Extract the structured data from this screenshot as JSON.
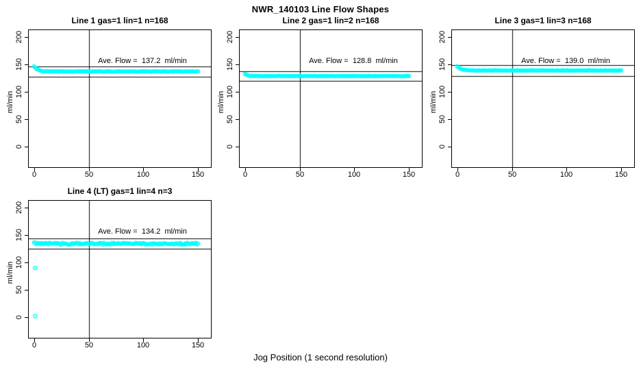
{
  "figure": {
    "title": "NWR_140103  Line Flow Shapes",
    "xlabel": "Jog Position (1 second resolution)",
    "ylabel": "ml/min",
    "background_color": "#ffffff",
    "point_color": "#00ffff",
    "line_color": "#000000"
  },
  "chart_data": [
    {
      "type": "scatter",
      "title": "Line 1 gas=1 lin=1 n=168",
      "annotation": "Ave. Flow =  137.2  ml/min",
      "ave_flow": 137.2,
      "xlim": [
        0,
        150
      ],
      "ylim": [
        0,
        200
      ],
      "x_ticks": [
        0,
        50,
        100,
        150
      ],
      "y_ticks": [
        0,
        50,
        100,
        150,
        200
      ],
      "vline_x": 50,
      "ref_lines": [
        146.8,
        127.6
      ],
      "series": {
        "start_value": 146.5,
        "settle_value": 137.2,
        "decay_tau": 3.2,
        "noise": 0.5,
        "x_start": 0,
        "x_end": 150
      },
      "outliers": []
    },
    {
      "type": "scatter",
      "title": "Line 2 gas=1 lin=2 n=168",
      "annotation": "Ave. Flow =  128.8  ml/min",
      "ave_flow": 128.8,
      "xlim": [
        0,
        150
      ],
      "ylim": [
        0,
        200
      ],
      "x_ticks": [
        0,
        50,
        100,
        150
      ],
      "y_ticks": [
        0,
        50,
        100,
        150,
        200
      ],
      "vline_x": 50,
      "ref_lines": [
        137.8,
        119.8
      ],
      "series": {
        "start_value": 133.0,
        "settle_value": 128.8,
        "decay_tau": 2.5,
        "noise": 0.5,
        "x_start": 0,
        "x_end": 150
      },
      "outliers": []
    },
    {
      "type": "scatter",
      "title": "Line 3 gas=1 lin=3 n=168",
      "annotation": "Ave. Flow =  139.0  ml/min",
      "ave_flow": 139.0,
      "xlim": [
        0,
        150
      ],
      "ylim": [
        0,
        200
      ],
      "x_ticks": [
        0,
        50,
        100,
        150
      ],
      "y_ticks": [
        0,
        50,
        100,
        150,
        200
      ],
      "vline_x": 50,
      "ref_lines": [
        148.7,
        129.3
      ],
      "series": {
        "start_value": 147.0,
        "settle_value": 139.0,
        "decay_tau": 3.2,
        "noise": 0.5,
        "x_start": 0,
        "x_end": 150
      },
      "outliers": []
    },
    {
      "type": "scatter",
      "title": "Line 4 (LT) gas=1 lin=4 n=3",
      "annotation": "Ave. Flow =  134.2  ml/min",
      "ave_flow": 134.2,
      "xlim": [
        0,
        150
      ],
      "ylim": [
        0,
        200
      ],
      "x_ticks": [
        0,
        50,
        100,
        150
      ],
      "y_ticks": [
        0,
        50,
        100,
        150,
        200
      ],
      "vline_x": 50,
      "ref_lines": [
        143.6,
        124.8
      ],
      "series": {
        "start_value": 135.0,
        "settle_value": 134.2,
        "decay_tau": 2.0,
        "noise": 1.7,
        "x_start": 0,
        "x_end": 150
      },
      "outliers": [
        [
          1,
          90
        ],
        [
          1,
          2
        ]
      ]
    }
  ]
}
